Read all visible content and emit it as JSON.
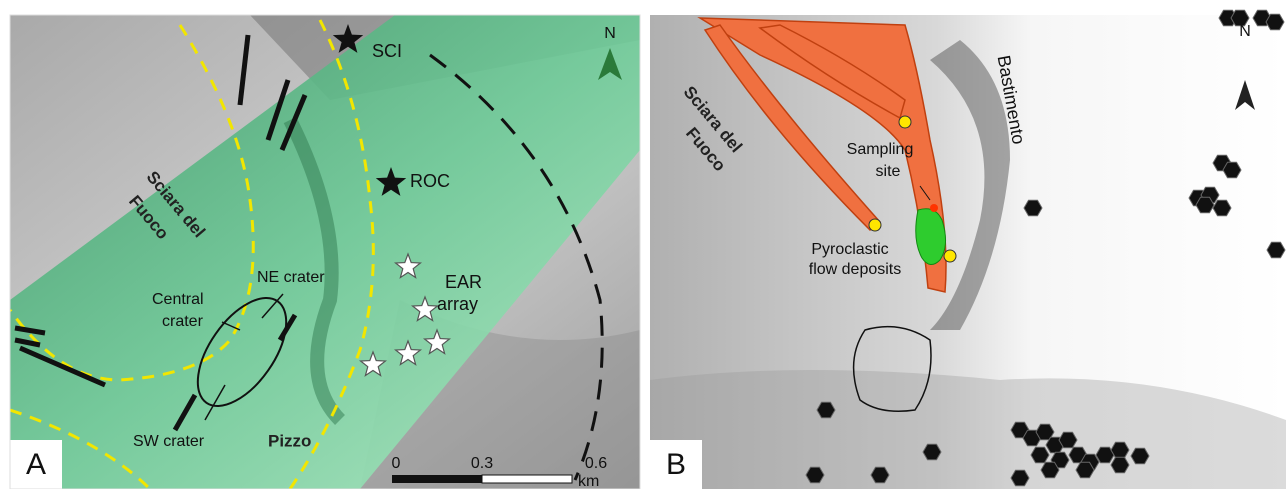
{
  "panel_a": {
    "label": "A",
    "north": "N",
    "sciara": [
      "Sciara del",
      "Fuoco"
    ],
    "stations": [
      "SCI",
      "ROC"
    ],
    "array": [
      "EAR",
      "array"
    ],
    "craters": {
      "ne": "NE crater",
      "central": [
        "Central",
        "crater"
      ],
      "sw": "SW crater"
    },
    "pizzo": "Pizzo",
    "scale": {
      "ticks": [
        "0",
        "0.3",
        "0.6"
      ],
      "unit": "km"
    }
  },
  "panel_b": {
    "label": "B",
    "north": "N",
    "sciara": [
      "Sciara del",
      "Fuoco"
    ],
    "bastimento": "Bastimento",
    "sampling": [
      "Sampling",
      "site"
    ],
    "deposits": [
      "Pyroclastic",
      "flow deposits"
    ]
  }
}
